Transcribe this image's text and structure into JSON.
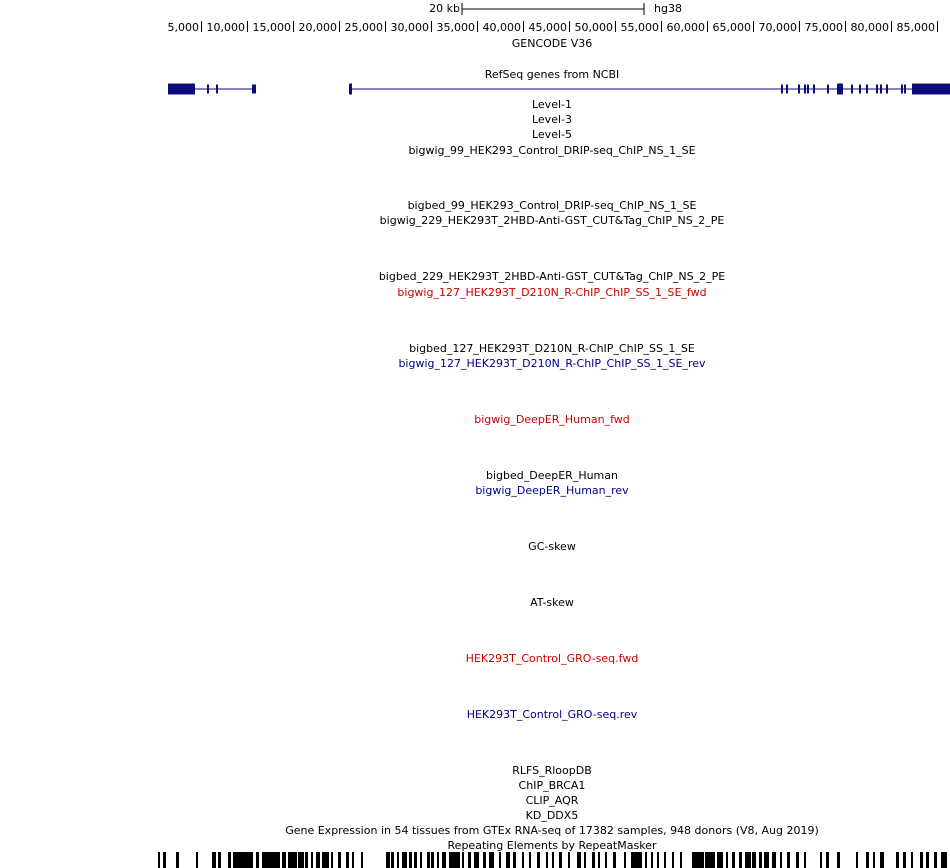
{
  "scale_bar": {
    "size_label": "20 kb",
    "assembly": "hg38"
  },
  "ruler": {
    "ticks": [
      "5,000",
      "10,000",
      "15,000",
      "20,000",
      "25,000",
      "30,000",
      "35,000",
      "40,000",
      "45,000",
      "50,000",
      "55,000",
      "60,000",
      "65,000",
      "70,000",
      "75,000",
      "80,000",
      "85,000"
    ]
  },
  "tracks": [
    {
      "id": "gencode",
      "label": "GENCODE V36",
      "color": "#000000"
    },
    {
      "id": "refseq",
      "label": "RefSeq genes from NCBI",
      "color": "#000000"
    },
    {
      "id": "level1",
      "label": "Level-1",
      "color": "#000000"
    },
    {
      "id": "level3",
      "label": "Level-3",
      "color": "#000000"
    },
    {
      "id": "level5",
      "label": "Level-5",
      "color": "#000000"
    },
    {
      "id": "bw99",
      "label": "bigwig_99_HEK293_Control_DRIP-seq_ChIP_NS_1_SE",
      "color": "#000000"
    },
    {
      "id": "bb99",
      "label": "bigbed_99_HEK293_Control_DRIP-seq_ChIP_NS_1_SE",
      "color": "#000000"
    },
    {
      "id": "bw229",
      "label": "bigwig_229_HEK293T_2HBD-Anti-GST_CUT&Tag_ChIP_NS_2_PE",
      "color": "#000000"
    },
    {
      "id": "bb229",
      "label": "bigbed_229_HEK293T_2HBD-Anti-GST_CUT&Tag_ChIP_NS_2_PE",
      "color": "#000000"
    },
    {
      "id": "bw127fwd",
      "label": "bigwig_127_HEK293T_D210N_R-ChIP_ChIP_SS_1_SE_fwd",
      "color": "#cc0000"
    },
    {
      "id": "bb127",
      "label": "bigbed_127_HEK293T_D210N_R-ChIP_ChIP_SS_1_SE",
      "color": "#000000"
    },
    {
      "id": "bw127rev",
      "label": "bigwig_127_HEK293T_D210N_R-ChIP_ChIP_SS_1_SE_rev",
      "color": "#00008b"
    },
    {
      "id": "deeperfwd",
      "label": "bigwig_DeepER_Human_fwd",
      "color": "#cc0000"
    },
    {
      "id": "deeperbb",
      "label": "bigbed_DeepER_Human",
      "color": "#000000"
    },
    {
      "id": "deeperrev",
      "label": "bigwig_DeepER_Human_rev",
      "color": "#00008b"
    },
    {
      "id": "gcskew",
      "label": "GC-skew",
      "color": "#000000"
    },
    {
      "id": "atskew",
      "label": "AT-skew",
      "color": "#000000"
    },
    {
      "id": "grofwd",
      "label": "HEK293T_Control_GRO-seq.fwd",
      "color": "#cc0000"
    },
    {
      "id": "grorev",
      "label": "HEK293T_Control_GRO-seq.rev",
      "color": "#00008b"
    },
    {
      "id": "rlfs",
      "label": "RLFS_RloopDB",
      "color": "#000000"
    },
    {
      "id": "brca1",
      "label": "ChIP_BRCA1",
      "color": "#000000"
    },
    {
      "id": "aqr",
      "label": "CLIP_AQR",
      "color": "#000000"
    },
    {
      "id": "ddx5",
      "label": "KD_DDX5",
      "color": "#000000"
    },
    {
      "id": "gtex",
      "label": "Gene Expression in 54 tissues from GTEx RNA-seq of 17382 samples, 948 donors (V8, Aug 2019)",
      "color": "#000000"
    },
    {
      "id": "rmsk",
      "label": "Repeating Elements by RepeatMasker",
      "color": "#000000"
    }
  ],
  "colors": {
    "gene_feature": "#0c0c78",
    "fwd_strand": "#cc0000",
    "rev_strand": "#00008b"
  }
}
